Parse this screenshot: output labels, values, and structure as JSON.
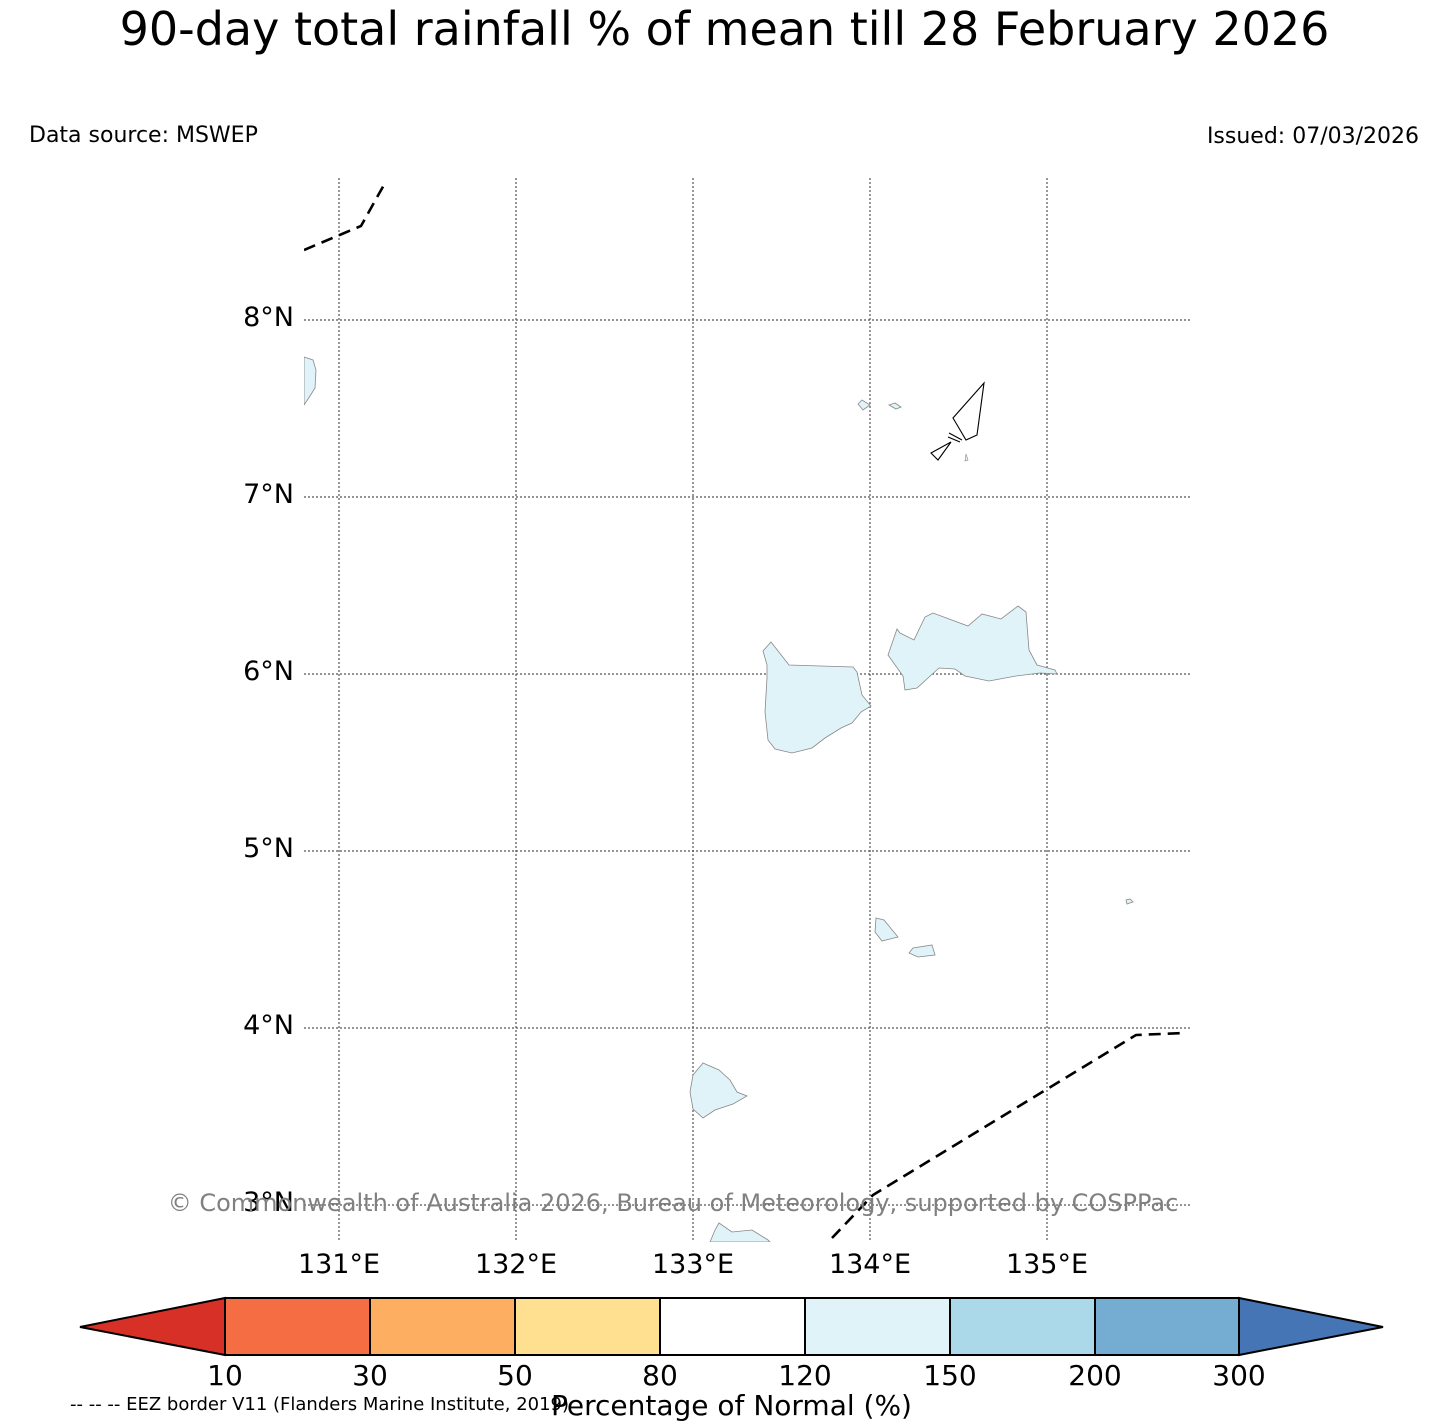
{
  "title": "90-day total rainfall % of mean till 28 February 2026",
  "data_source": "Data source: MSWEP",
  "issued": "Issued: 07/03/2026",
  "map": {
    "lon_range": [
      130.8,
      135.8
    ],
    "lat_range": [
      2.8,
      8.8
    ],
    "latitude_labels": [
      "8°N",
      "7°N",
      "6°N",
      "5°N",
      "4°N",
      "3°N"
    ],
    "longitude_labels": [
      "131°E",
      "132°E",
      "133°E",
      "134°E",
      "135°E"
    ],
    "land_fill_color": "#e0f3f8",
    "land_category": "120-150"
  },
  "copyright": "© Commonwealth of Australia 2026, Bureau of Meteorology, supported by COSPPac",
  "colorbar": {
    "label": "Percentage of Normal (%)",
    "ticks": [
      "10",
      "30",
      "50",
      "80",
      "120",
      "150",
      "200",
      "300"
    ],
    "colors": [
      "#d73027",
      "#f46d43",
      "#fdae61",
      "#fee090",
      "#ffffff",
      "#e0f3f8",
      "#abd9e9",
      "#74add1",
      "#4575b4"
    ]
  },
  "eez_note": "-- -- -- EEZ border V11 (Flanders Marine Institute, 2019)"
}
